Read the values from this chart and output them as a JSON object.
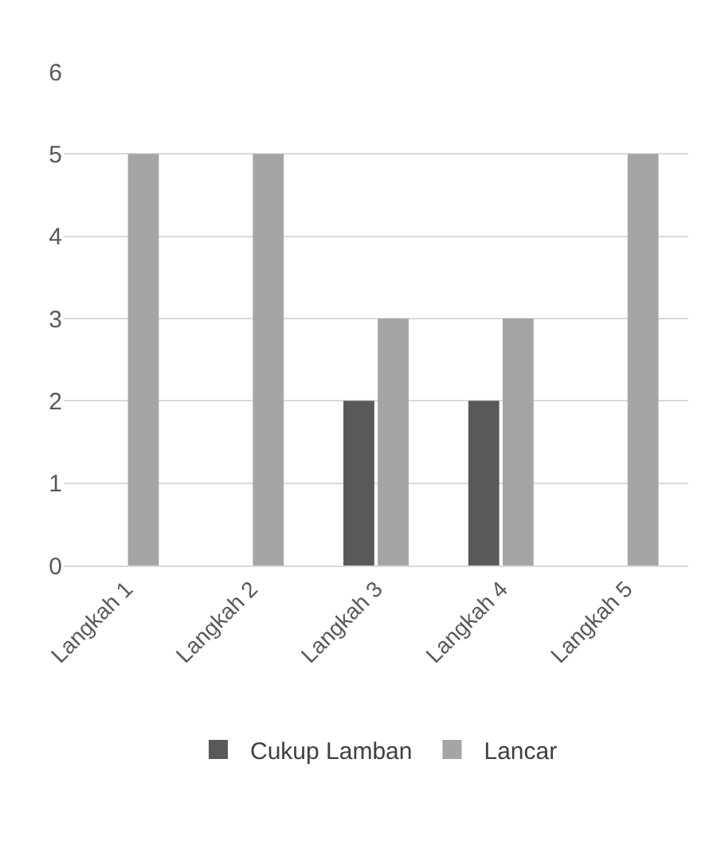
{
  "chart_data": {
    "type": "bar",
    "categories": [
      "Langkah 1",
      "Langkah 2",
      "Langkah 3",
      "Langkah 4",
      "Langkah 5"
    ],
    "series": [
      {
        "name": "Cukup Lamban",
        "color": "#595959",
        "values": [
          null,
          null,
          2,
          2,
          null
        ]
      },
      {
        "name": "Lancar",
        "color": "#a5a5a5",
        "values": [
          5,
          5,
          3,
          3,
          5
        ]
      }
    ],
    "ylim": [
      0,
      6
    ],
    "yticks": [
      0,
      1,
      2,
      3,
      4,
      5,
      6
    ],
    "grid": "y",
    "legend": "bottom"
  }
}
